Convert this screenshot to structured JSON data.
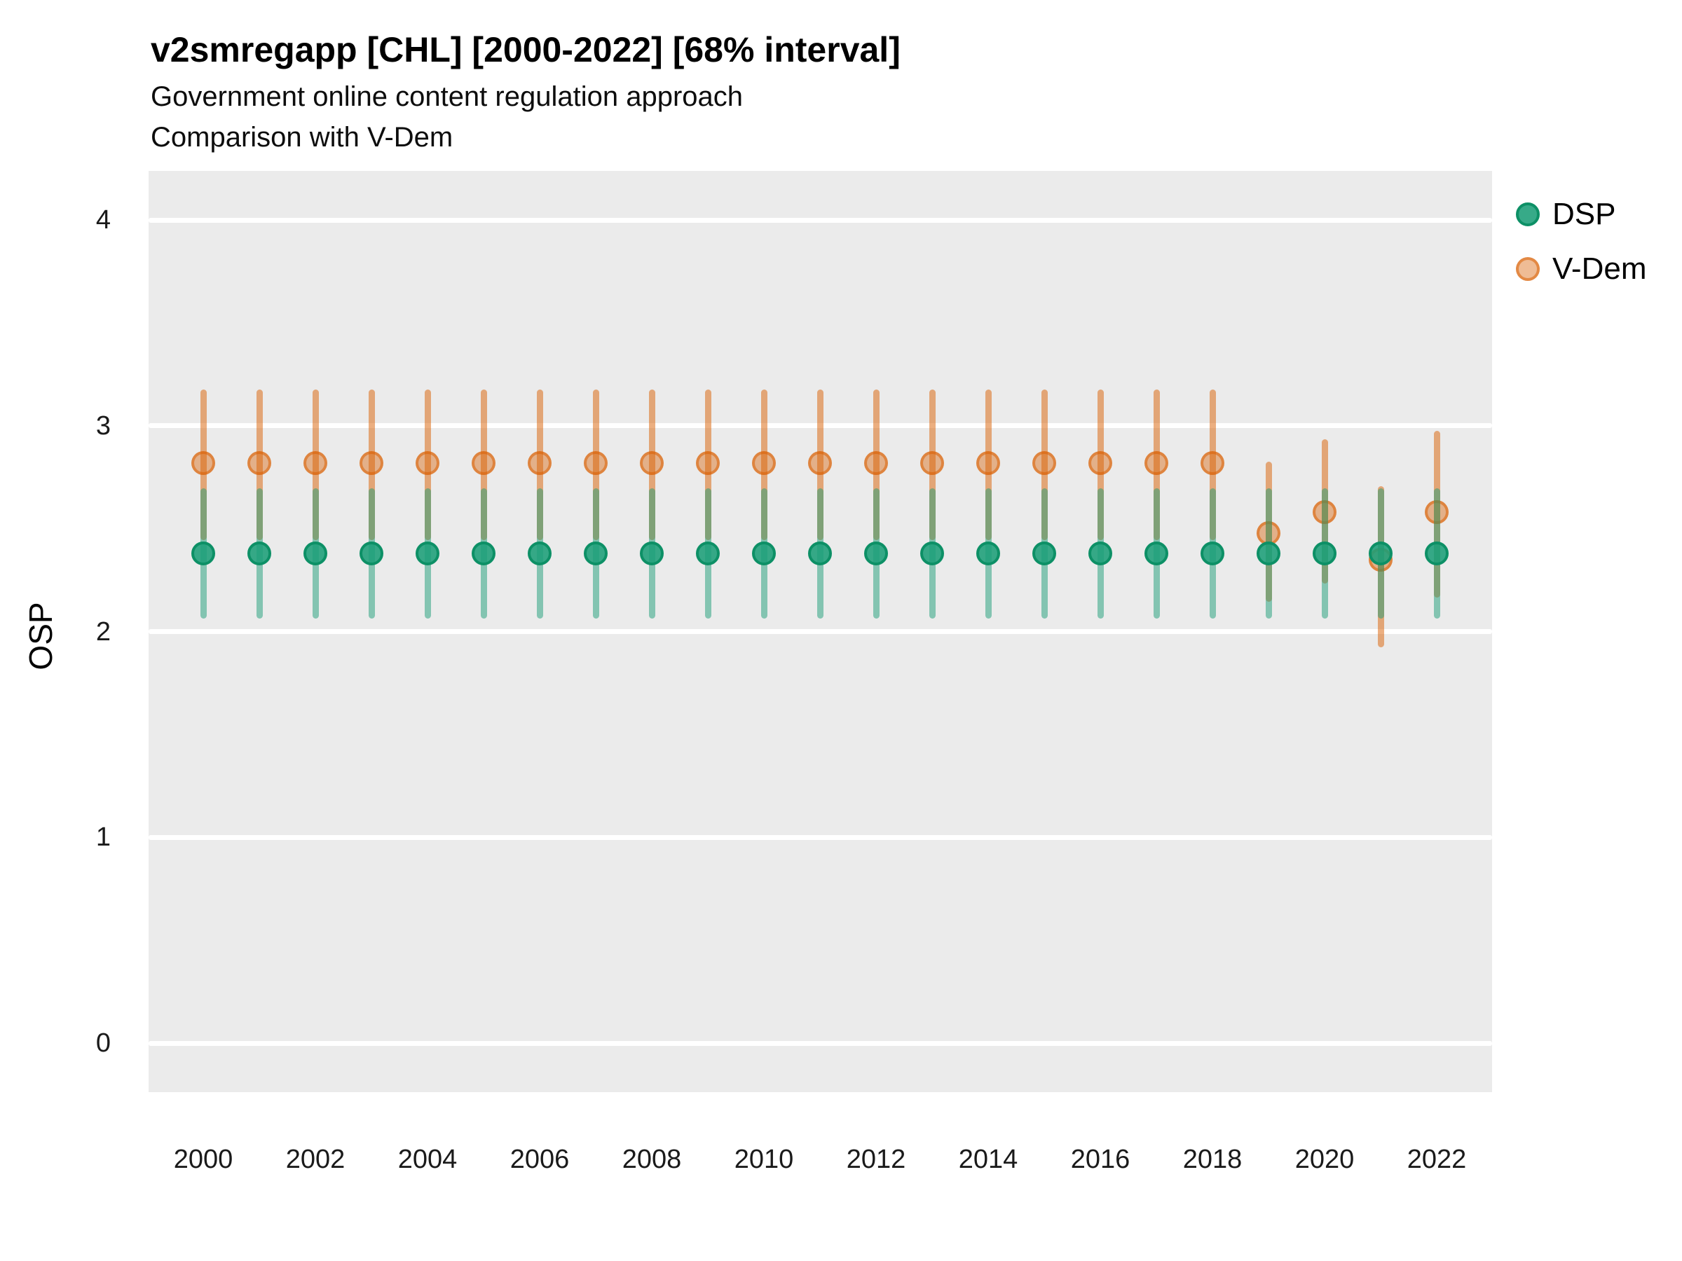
{
  "header": {
    "title": "v2smregapp [CHL] [2000-2022] [68% interval]",
    "subtitle1": "Government online content regulation approach",
    "subtitle2": "Comparison with V-Dem"
  },
  "chart_data": {
    "type": "pointrange",
    "title": "v2smregapp [CHL] [2000-2022] [68% interval]",
    "xlabel": "",
    "ylabel": "OSP",
    "ylim": [
      0,
      4
    ],
    "yticks": [
      0,
      1,
      2,
      3,
      4
    ],
    "xticks": [
      2000,
      2002,
      2004,
      2006,
      2008,
      2010,
      2012,
      2014,
      2016,
      2018,
      2020,
      2022
    ],
    "grid": "major horizontal only",
    "legend_position": "right",
    "x": [
      2000,
      2001,
      2002,
      2003,
      2004,
      2005,
      2006,
      2007,
      2008,
      2009,
      2010,
      2011,
      2012,
      2013,
      2014,
      2015,
      2016,
      2017,
      2018,
      2019,
      2020,
      2021,
      2022
    ],
    "series": [
      {
        "name": "DSP",
        "key": "dsp",
        "color": "#1B9E77",
        "est": [
          2.38,
          2.38,
          2.38,
          2.38,
          2.38,
          2.38,
          2.38,
          2.38,
          2.38,
          2.38,
          2.38,
          2.38,
          2.38,
          2.38,
          2.38,
          2.38,
          2.38,
          2.38,
          2.38,
          2.38,
          2.38,
          2.38,
          2.38
        ],
        "lo": [
          2.08,
          2.08,
          2.08,
          2.08,
          2.08,
          2.08,
          2.08,
          2.08,
          2.08,
          2.08,
          2.08,
          2.08,
          2.08,
          2.08,
          2.08,
          2.08,
          2.08,
          2.08,
          2.08,
          2.08,
          2.08,
          2.08,
          2.08
        ],
        "hi": [
          2.68,
          2.68,
          2.68,
          2.68,
          2.68,
          2.68,
          2.68,
          2.68,
          2.68,
          2.68,
          2.68,
          2.68,
          2.68,
          2.68,
          2.68,
          2.68,
          2.68,
          2.68,
          2.68,
          2.68,
          2.68,
          2.68,
          2.68
        ]
      },
      {
        "name": "V-Dem",
        "key": "vdem",
        "color": "#D95F02",
        "est": [
          2.82,
          2.82,
          2.82,
          2.82,
          2.82,
          2.82,
          2.82,
          2.82,
          2.82,
          2.82,
          2.82,
          2.82,
          2.82,
          2.82,
          2.82,
          2.82,
          2.82,
          2.82,
          2.82,
          2.48,
          2.58,
          2.35,
          2.58
        ],
        "lo": [
          2.46,
          2.46,
          2.46,
          2.46,
          2.46,
          2.46,
          2.46,
          2.46,
          2.46,
          2.46,
          2.46,
          2.46,
          2.46,
          2.46,
          2.46,
          2.46,
          2.46,
          2.46,
          2.46,
          2.16,
          2.25,
          1.94,
          2.18
        ],
        "hi": [
          3.16,
          3.16,
          3.16,
          3.16,
          3.16,
          3.16,
          3.16,
          3.16,
          3.16,
          3.16,
          3.16,
          3.16,
          3.16,
          3.16,
          3.16,
          3.16,
          3.16,
          3.16,
          3.16,
          2.81,
          2.92,
          2.69,
          2.96
        ]
      }
    ]
  },
  "legend": {
    "items": [
      {
        "label": "DSP"
      },
      {
        "label": "V-Dem"
      }
    ]
  },
  "colors": {
    "panel_bg": "#EBEBEB",
    "gridline": "#FFFFFF",
    "dsp": "#1B9E77",
    "vdem": "#D95F02",
    "dsp_line": "rgba(27,158,119,0.50)",
    "dsp_point_fill": "rgba(27,158,119,0.88)",
    "dsp_point_border": "#0D9066",
    "vdem_line": "rgba(217,95,2,0.50)",
    "vdem_point_fill": "rgba(217,95,2,0.42)",
    "vdem_point_border": "rgba(217,95,2,0.55)"
  }
}
